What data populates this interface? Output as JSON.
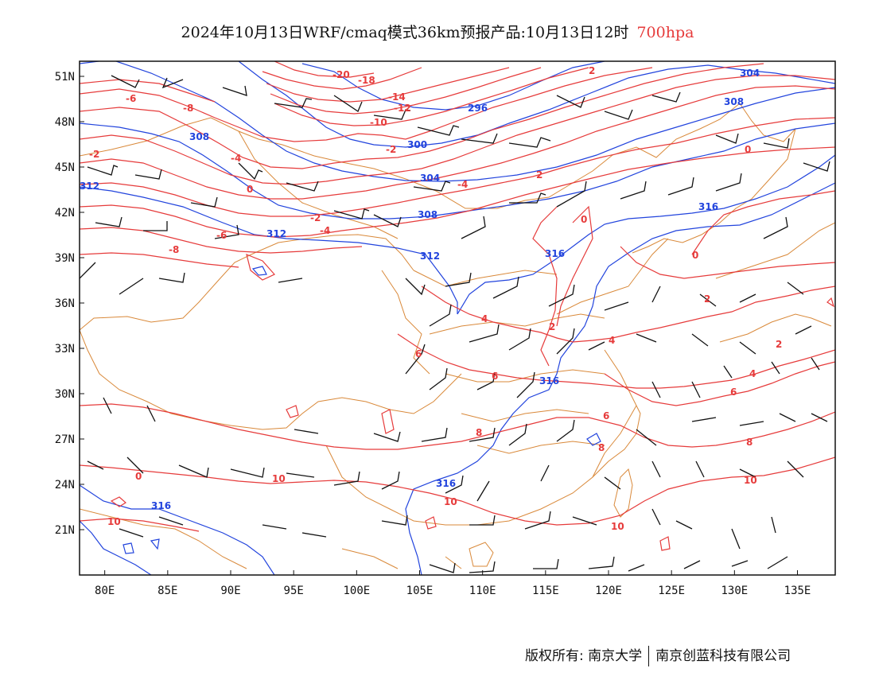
{
  "title": {
    "main": "2024年10月13日WRF/cmaq模式36km预报产品:10月13日12时",
    "level": "700hpa"
  },
  "colors": {
    "temperature_contour": "#e63b3b",
    "height_contour": "#2244dd",
    "boundary": "#d9893a",
    "wind_barb": "#111111",
    "level_text": "#e63b3b"
  },
  "axes": {
    "x_ticks": [
      "80E",
      "85E",
      "90E",
      "95E",
      "100E",
      "105E",
      "110E",
      "115E",
      "120E",
      "125E",
      "130E",
      "135E"
    ],
    "y_ticks": [
      "51N",
      "48N",
      "45N",
      "42N",
      "39N",
      "36N",
      "33N",
      "30N",
      "27N",
      "24N",
      "21N"
    ],
    "lon_range": [
      78,
      138
    ],
    "lat_range": [
      18,
      52
    ]
  },
  "contour_labels": {
    "height": [
      "304",
      "308",
      "300",
      "296",
      "308",
      "304",
      "308",
      "312",
      "316",
      "312",
      "312",
      "316",
      "316",
      "316",
      "316"
    ],
    "temperature": [
      "-20",
      "-18",
      "-14",
      "-12",
      "-10",
      "-6",
      "-8",
      "-4",
      "-2",
      "-2",
      "0",
      "0",
      "2",
      "-4",
      "-6",
      "-8",
      "-2",
      "-4",
      "2",
      "0",
      "2",
      "0",
      "2",
      "4",
      "4",
      "6",
      "6",
      "6",
      "6",
      "8",
      "8",
      "8",
      "10",
      "10",
      "10",
      "10",
      "10",
      "4",
      "2",
      "0"
    ]
  },
  "footer": {
    "copyright": "版权所有: 南京大学",
    "company": "南京创蓝科技有限公司"
  }
}
